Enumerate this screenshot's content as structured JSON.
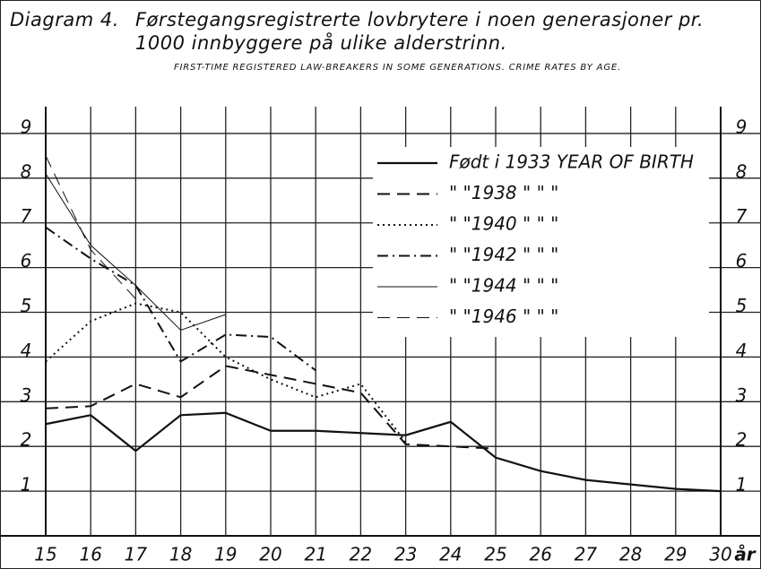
{
  "chart_data": {
    "type": "line",
    "label": "Diagram 4.",
    "title": "Førstegangsregistrerte lovbrytere i noen generasjoner pr. 1000 innbyggere på ulike alderstrinn.",
    "subtitle": "FIRST-TIME REGISTERED LAW-BREAKERS IN SOME GENERATIONS. CRIME RATES BY AGE.",
    "x_label": "år",
    "x": [
      15,
      16,
      17,
      18,
      19,
      20,
      21,
      22,
      23,
      24,
      25,
      26,
      27,
      28,
      29,
      30
    ],
    "xlim": [
      15,
      30
    ],
    "xticks": [
      15,
      16,
      17,
      18,
      19,
      20,
      21,
      22,
      23,
      24,
      25,
      26,
      27,
      28,
      29,
      30
    ],
    "ylim": [
      0,
      9.6
    ],
    "yticks": [
      1,
      2,
      3,
      4,
      5,
      6,
      7,
      8,
      9
    ],
    "grid": true,
    "legend": "upper right",
    "series": [
      {
        "name": "Født i 1933 YEAR OF BIRTH",
        "color": "#111111",
        "style": "solid",
        "width": 2.2,
        "values": [
          2.5,
          2.7,
          1.9,
          2.7,
          2.75,
          2.35,
          2.35,
          2.3,
          2.25,
          2.55,
          1.75,
          1.45,
          1.25,
          1.15,
          1.05,
          1.0
        ]
      },
      {
        "name": "\" \"1938 \" \" \"",
        "color": "#111111",
        "style": "dashed",
        "width": 2,
        "values": [
          2.85,
          2.9,
          3.4,
          3.1,
          3.8,
          3.6,
          3.4,
          3.2,
          2.05,
          2.0,
          1.95,
          null,
          null,
          null,
          null,
          null
        ]
      },
      {
        "name": "\" \"1940 \" \" \"",
        "color": "#111111",
        "style": "dotted",
        "width": 2,
        "values": [
          3.9,
          4.8,
          5.2,
          5.0,
          4.0,
          3.5,
          3.1,
          3.4,
          2.1,
          null,
          null,
          null,
          null,
          null,
          null,
          null
        ]
      },
      {
        "name": "\" \"1942 \" \" \"",
        "color": "#111111",
        "style": "dashdot",
        "width": 2,
        "values": [
          6.9,
          6.2,
          5.6,
          3.9,
          4.5,
          4.45,
          3.7,
          null,
          null,
          null,
          null,
          null,
          null,
          null,
          null,
          null
        ]
      },
      {
        "name": "\" \"1944 \" \" \"",
        "color": "#111111",
        "style": "solid",
        "width": 1,
        "values": [
          8.1,
          6.5,
          5.6,
          4.6,
          4.95,
          null,
          null,
          null,
          null,
          null,
          null,
          null,
          null,
          null,
          null,
          null
        ]
      },
      {
        "name": "\" \"1946 \" \" \"",
        "color": "#111111",
        "style": "dashed",
        "width": 1,
        "values": [
          8.5,
          6.4,
          5.3,
          null,
          null,
          null,
          null,
          null,
          null,
          null,
          null,
          null,
          null,
          null,
          null,
          null
        ]
      }
    ]
  }
}
